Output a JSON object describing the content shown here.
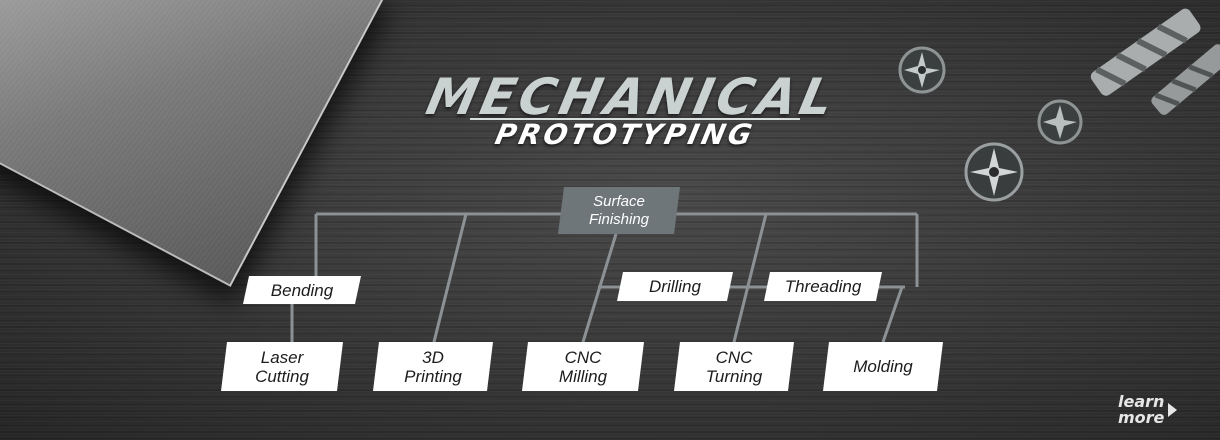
{
  "banner": {
    "title_main": "MECHANICAL",
    "title_sub": "PROTOTYPING",
    "learn_more": "learn\nmore"
  },
  "diagram": {
    "root": "Surface\nFinishing",
    "middle": [
      "Bending",
      "Drilling",
      "Threading"
    ],
    "bottom": [
      "Laser\nCutting",
      "3D\nPrinting",
      "CNC\nMilling",
      "CNC\nTurning",
      "Molding"
    ]
  },
  "colors": {
    "root_box": "#6f7679",
    "node_box": "#ffffff",
    "connector": "#8b9194",
    "title_main": "#c9d2d0"
  },
  "icons": [
    "end-mill-icon",
    "drill-bit-icon",
    "triangle-arrow-icon"
  ]
}
